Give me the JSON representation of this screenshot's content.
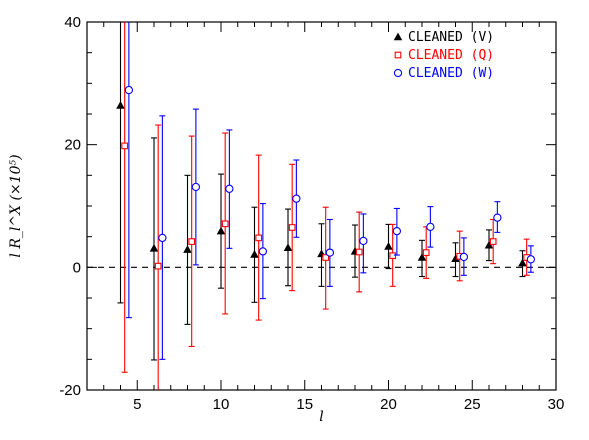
{
  "chart_data": {
    "type": "scatter",
    "xlabel": "l",
    "ylabel": "l R_l^X (×10⁵)",
    "xlim": [
      2,
      30
    ],
    "ylim": [
      -20,
      40
    ],
    "x_ticks": [
      5,
      10,
      15,
      20,
      25,
      30
    ],
    "y_ticks": [
      -20,
      0,
      20,
      40
    ],
    "reference_line": {
      "y": 0,
      "style": "dashed"
    },
    "legend_position": "top-right",
    "series": [
      {
        "name": "CLEANED (V)",
        "color": "#000000",
        "marker": "triangle",
        "points": [
          {
            "x": 4.0,
            "y": 26.4,
            "lo": -5.8,
            "hi": 40.0
          },
          {
            "x": 6.0,
            "y": 3.1,
            "lo": -15.1,
            "hi": 21.1
          },
          {
            "x": 8.0,
            "y": 2.9,
            "lo": -9.3,
            "hi": 15.0
          },
          {
            "x": 10.0,
            "y": 5.9,
            "lo": -3.4,
            "hi": 15.2
          },
          {
            "x": 12.0,
            "y": 2.1,
            "lo": -5.7,
            "hi": 9.8
          },
          {
            "x": 14.0,
            "y": 3.2,
            "lo": -3.0,
            "hi": 9.5
          },
          {
            "x": 16.0,
            "y": 2.2,
            "lo": -3.1,
            "hi": 7.1
          },
          {
            "x": 18.0,
            "y": 2.6,
            "lo": -1.6,
            "hi": 6.9
          },
          {
            "x": 20.0,
            "y": 3.4,
            "lo": -0.2,
            "hi": 7.0
          },
          {
            "x": 22.0,
            "y": 1.6,
            "lo": -1.5,
            "hi": 4.4
          },
          {
            "x": 24.0,
            "y": 1.4,
            "lo": -1.5,
            "hi": 4.0
          },
          {
            "x": 26.0,
            "y": 3.6,
            "lo": 1.1,
            "hi": 6.1
          },
          {
            "x": 28.0,
            "y": 0.7,
            "lo": -1.5,
            "hi": 2.7
          }
        ]
      },
      {
        "name": "CLEANED (Q)",
        "color": "#ff0000",
        "marker": "square",
        "points": [
          {
            "x": 4.25,
            "y": 19.8,
            "lo": -17.1,
            "hi": 40.0
          },
          {
            "x": 6.25,
            "y": 0.2,
            "lo": -20.0,
            "hi": 23.2
          },
          {
            "x": 8.25,
            "y": 4.2,
            "lo": -12.9,
            "hi": 21.4
          },
          {
            "x": 10.25,
            "y": 7.1,
            "lo": -7.6,
            "hi": 21.9
          },
          {
            "x": 12.25,
            "y": 4.8,
            "lo": -8.6,
            "hi": 18.3
          },
          {
            "x": 14.25,
            "y": 6.5,
            "lo": -3.8,
            "hi": 16.8
          },
          {
            "x": 16.25,
            "y": 1.6,
            "lo": -6.8,
            "hi": 9.8
          },
          {
            "x": 18.25,
            "y": 2.5,
            "lo": -4.0,
            "hi": 9.0
          },
          {
            "x": 20.25,
            "y": 1.9,
            "lo": -3.1,
            "hi": 7.0
          },
          {
            "x": 22.25,
            "y": 2.4,
            "lo": -1.8,
            "hi": 6.6
          },
          {
            "x": 24.25,
            "y": 1.8,
            "lo": -2.2,
            "hi": 5.9
          },
          {
            "x": 26.25,
            "y": 4.2,
            "lo": 0.6,
            "hi": 7.8
          },
          {
            "x": 28.25,
            "y": 1.6,
            "lo": -1.3,
            "hi": 4.6
          }
        ]
      },
      {
        "name": "CLEANED (W)",
        "color": "#0000ff",
        "marker": "circle",
        "points": [
          {
            "x": 4.5,
            "y": 28.9,
            "lo": -8.2,
            "hi": 40.0
          },
          {
            "x": 6.5,
            "y": 4.8,
            "lo": -15.0,
            "hi": 24.7
          },
          {
            "x": 8.5,
            "y": 13.1,
            "lo": 0.4,
            "hi": 25.8
          },
          {
            "x": 10.5,
            "y": 12.8,
            "lo": 3.1,
            "hi": 22.4
          },
          {
            "x": 12.5,
            "y": 2.6,
            "lo": -5.1,
            "hi": 10.4
          },
          {
            "x": 14.5,
            "y": 11.2,
            "lo": 4.9,
            "hi": 17.5
          },
          {
            "x": 16.5,
            "y": 2.4,
            "lo": -3.1,
            "hi": 7.8
          },
          {
            "x": 18.5,
            "y": 4.3,
            "lo": -0.9,
            "hi": 8.7
          },
          {
            "x": 20.5,
            "y": 5.9,
            "lo": 2.0,
            "hi": 9.6
          },
          {
            "x": 22.5,
            "y": 6.6,
            "lo": 3.3,
            "hi": 9.9
          },
          {
            "x": 24.5,
            "y": 1.7,
            "lo": -1.3,
            "hi": 4.8
          },
          {
            "x": 26.5,
            "y": 8.1,
            "lo": 5.7,
            "hi": 10.7
          },
          {
            "x": 28.5,
            "y": 1.3,
            "lo": -0.8,
            "hi": 3.5
          }
        ]
      }
    ]
  }
}
